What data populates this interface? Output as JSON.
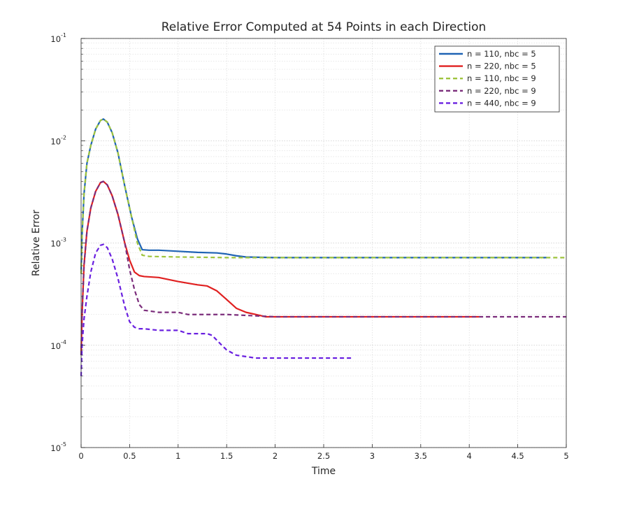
{
  "chart_data": {
    "type": "line",
    "title": "Relative Error Computed at 54 Points in each Direction",
    "xlabel": "Time",
    "ylabel": "Relative Error",
    "xlim": [
      0,
      5
    ],
    "ylim": [
      1e-05,
      0.1
    ],
    "yscale": "log",
    "grid": true,
    "minor_grid_y": true,
    "legend_position": "top-right",
    "x_ticks": [
      "0",
      "0.5",
      "1",
      "1.5",
      "2",
      "2.5",
      "3",
      "3.5",
      "4",
      "4.5",
      "5"
    ],
    "y_ticks": [
      {
        "base": "10",
        "exp": "-5",
        "value": 1e-05
      },
      {
        "base": "10",
        "exp": "-4",
        "value": 0.0001
      },
      {
        "base": "10",
        "exp": "-3",
        "value": 0.001
      },
      {
        "base": "10",
        "exp": "-2",
        "value": 0.01
      },
      {
        "base": "10",
        "exp": "-1",
        "value": 0.1
      }
    ],
    "series": [
      {
        "name": "n = 110, nbc = 5",
        "color": "#1f63b4",
        "dash": "solid",
        "x": [
          0,
          0.01,
          0.03,
          0.06,
          0.1,
          0.15,
          0.2,
          0.23,
          0.27,
          0.32,
          0.38,
          0.45,
          0.52,
          0.58,
          0.63,
          0.7,
          0.8,
          1.0,
          1.2,
          1.4,
          1.5,
          1.6,
          1.7,
          2.0,
          3.0,
          4.0,
          4.8
        ],
        "y": [
          0.0005,
          0.0012,
          0.003,
          0.006,
          0.009,
          0.013,
          0.0158,
          0.0163,
          0.0152,
          0.012,
          0.0076,
          0.0036,
          0.0018,
          0.0011,
          0.00086,
          0.00085,
          0.00085,
          0.00083,
          0.00081,
          0.0008,
          0.00078,
          0.00075,
          0.00073,
          0.00072,
          0.00072,
          0.00072,
          0.00072
        ]
      },
      {
        "name": "n = 220, nbc = 5",
        "color": "#e02020",
        "dash": "solid",
        "x": [
          0,
          0.01,
          0.03,
          0.06,
          0.1,
          0.15,
          0.2,
          0.23,
          0.27,
          0.32,
          0.38,
          0.45,
          0.5,
          0.55,
          0.6,
          0.65,
          0.8,
          1.0,
          1.2,
          1.3,
          1.4,
          1.5,
          1.6,
          1.7,
          1.8,
          1.9,
          2.0,
          3.0,
          4.1
        ],
        "y": [
          8e-05,
          0.0002,
          0.0006,
          0.0013,
          0.0022,
          0.0032,
          0.0039,
          0.004,
          0.0037,
          0.0029,
          0.0019,
          0.001,
          0.00068,
          0.00052,
          0.00048,
          0.00047,
          0.00046,
          0.00042,
          0.00039,
          0.00038,
          0.00034,
          0.00028,
          0.00023,
          0.00021,
          0.0002,
          0.00019,
          0.00019,
          0.00019,
          0.00019
        ]
      },
      {
        "name": "n = 110, nbc = 9",
        "color": "#9ec43d",
        "dash": "dashed",
        "x": [
          0,
          0.01,
          0.03,
          0.06,
          0.1,
          0.15,
          0.2,
          0.23,
          0.27,
          0.32,
          0.38,
          0.45,
          0.52,
          0.58,
          0.63,
          0.7,
          1.0,
          1.5,
          2.0,
          3.0,
          4.0,
          5.0
        ],
        "y": [
          0.0005,
          0.0012,
          0.003,
          0.006,
          0.009,
          0.013,
          0.0158,
          0.0163,
          0.0152,
          0.012,
          0.0076,
          0.0036,
          0.0018,
          0.001,
          0.00076,
          0.00074,
          0.00073,
          0.00072,
          0.00072,
          0.00072,
          0.00072,
          0.00072
        ]
      },
      {
        "name": "n = 220, nbc = 9",
        "color": "#7b2d7b",
        "dash": "dashed",
        "x": [
          0,
          0.01,
          0.03,
          0.06,
          0.1,
          0.15,
          0.2,
          0.23,
          0.27,
          0.32,
          0.38,
          0.45,
          0.5,
          0.55,
          0.6,
          0.65,
          0.8,
          1.0,
          1.1,
          1.5,
          2.0,
          3.0,
          4.0,
          5.0
        ],
        "y": [
          8e-05,
          0.0002,
          0.0006,
          0.0013,
          0.0022,
          0.0032,
          0.0039,
          0.004,
          0.0037,
          0.0029,
          0.0019,
          0.001,
          0.00055,
          0.00035,
          0.00025,
          0.00022,
          0.00021,
          0.00021,
          0.0002,
          0.0002,
          0.00019,
          0.00019,
          0.00019,
          0.00019
        ]
      },
      {
        "name": "n = 440, nbc = 9",
        "color": "#6a20e0",
        "dash": "dashed",
        "x": [
          0,
          0.01,
          0.03,
          0.06,
          0.1,
          0.15,
          0.2,
          0.23,
          0.27,
          0.32,
          0.38,
          0.45,
          0.5,
          0.55,
          0.6,
          0.65,
          0.8,
          1.0,
          1.1,
          1.3,
          1.35,
          1.45,
          1.5,
          1.6,
          1.8,
          2.0,
          2.5,
          2.8
        ],
        "y": [
          5e-05,
          0.0001,
          0.00018,
          0.0003,
          0.00052,
          0.0008,
          0.00095,
          0.00097,
          0.0009,
          0.0007,
          0.00045,
          0.00024,
          0.00017,
          0.00015,
          0.000145,
          0.000145,
          0.00014,
          0.00014,
          0.00013,
          0.00013,
          0.000125,
          0.0001,
          9e-05,
          8e-05,
          7.5e-05,
          7.5e-05,
          7.5e-05,
          7.5e-05
        ]
      }
    ]
  }
}
